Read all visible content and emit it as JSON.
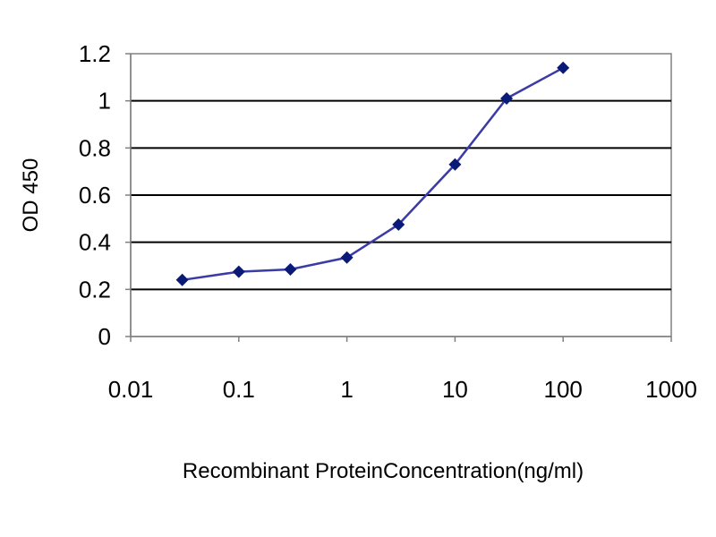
{
  "chart_data": {
    "type": "line",
    "title": "",
    "xlabel": "Recombinant ProteinConcentration(ng/ml)",
    "ylabel": "OD 450",
    "x_scale": "log",
    "xlim": [
      0.01,
      1000
    ],
    "ylim": [
      0,
      1.2
    ],
    "x_ticks": [
      0.01,
      0.1,
      1,
      10,
      100,
      1000
    ],
    "x_tick_labels": [
      "0.01",
      "0.1",
      "1",
      "10",
      "100",
      "1000"
    ],
    "y_ticks": [
      0,
      0.2,
      0.4,
      0.6,
      0.8,
      1,
      1.2
    ],
    "y_tick_labels": [
      "0",
      "0.2",
      "0.4",
      "0.6",
      "0.8",
      "1",
      "1.2"
    ],
    "grid": "horizontal",
    "legend": "none",
    "plot_area_color": "#ffffff",
    "grid_color": "#000000",
    "series": [
      {
        "color": "#3b3ba8",
        "marker_color": "#0a1a78",
        "marker": "diamond",
        "x": [
          0.03,
          0.1,
          0.3,
          1,
          3,
          10,
          30,
          100
        ],
        "y": [
          0.24,
          0.275,
          0.285,
          0.335,
          0.475,
          0.73,
          1.01,
          1.14
        ]
      }
    ]
  }
}
